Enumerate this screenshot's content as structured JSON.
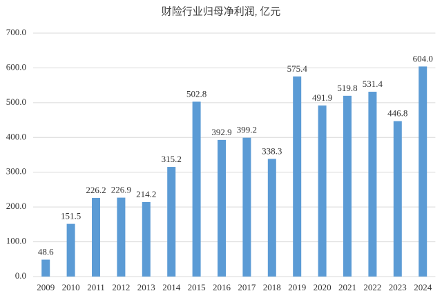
{
  "chart_data": {
    "type": "bar",
    "title": "财险行业归母净利润, 亿元",
    "categories": [
      "2009",
      "2010",
      "2011",
      "2012",
      "2013",
      "2014",
      "2015",
      "2016",
      "2017",
      "2018",
      "2019",
      "2020",
      "2021",
      "2022",
      "2023",
      "2024"
    ],
    "values": [
      48.6,
      151.5,
      226.2,
      226.9,
      214.2,
      315.2,
      502.8,
      392.9,
      399.2,
      338.3,
      575.4,
      491.9,
      519.8,
      531.4,
      446.8,
      604.0
    ],
    "value_labels": [
      "48.6",
      "151.5",
      "226.2",
      "226.9",
      "214.2",
      "315.2",
      "502.8",
      "392.9",
      "399.2",
      "338.3",
      "575.4",
      "491.9",
      "519.8",
      "531.4",
      "446.8",
      "604.0"
    ],
    "color": "#5b9bd5",
    "ylim": [
      0,
      700
    ],
    "yticks": [
      {
        "value": 0,
        "label": "0.0"
      },
      {
        "value": 100,
        "label": "100.0"
      },
      {
        "value": 200,
        "label": "200.0"
      },
      {
        "value": 300,
        "label": "300.0"
      },
      {
        "value": 400,
        "label": "400.0"
      },
      {
        "value": 500,
        "label": "500.0"
      },
      {
        "value": 600,
        "label": "600.0"
      },
      {
        "value": 700,
        "label": "700.0"
      }
    ],
    "grid": true
  }
}
